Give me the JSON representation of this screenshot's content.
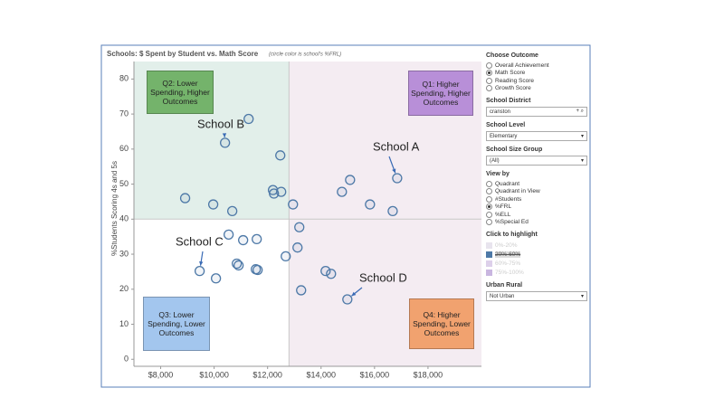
{
  "chart_data": {
    "type": "scatter",
    "title": "Schools: $ Spent by Student vs. Math Score",
    "subtitle": "(circle color is school's %FRL)",
    "y_label": "%Students Scoring 4s and 5s",
    "xlim": [
      7000,
      20000
    ],
    "ylim": [
      -2,
      85
    ],
    "xticks": [
      {
        "value": 8000,
        "label": "$8,000"
      },
      {
        "value": 10000,
        "label": "$10,000"
      },
      {
        "value": 12000,
        "label": "$12,000"
      },
      {
        "value": 14000,
        "label": "$14,000"
      },
      {
        "value": 16000,
        "label": "$16,000"
      },
      {
        "value": 18000,
        "label": "$18,000"
      }
    ],
    "yticks": [
      0,
      10,
      20,
      30,
      40,
      50,
      60,
      70,
      80
    ],
    "reference_lines": {
      "x": 12800,
      "y": 40
    },
    "quadrants": [
      {
        "label": "Q2: Lower Spending, Higher Outcomes",
        "color": "#74b36b",
        "background": "#e2efea"
      },
      {
        "label": "Q1: Higher Spending, Higher Outcomes",
        "color": "#b88fd8",
        "background": "#f4ecf2"
      },
      {
        "label": "Q3: Lower Spending, Lower Outcomes",
        "color": "#a3c6ee",
        "background": "#ffffff"
      },
      {
        "label": "Q4: Higher Spending, Lower Outcomes",
        "color": "#f1a26f",
        "background": "#f4ecf2"
      }
    ],
    "annotations": [
      "School B",
      "School A",
      "School C",
      "School D"
    ],
    "series": [
      {
        "name": "20%-60%",
        "color": "#4e79a7",
        "x": [
          11290,
          10407,
          12475,
          16847,
          15085,
          8915,
          14780,
          15830,
          16680,
          9966,
          10678,
          12200,
          12237,
          12508,
          12950,
          13186,
          10542,
          11085,
          11593,
          13119,
          12678,
          10847,
          10915,
          11559,
          11627,
          9458,
          10068,
          14170,
          14373,
          13254,
          14983
        ],
        "values": [
          68.6,
          61.8,
          58.2,
          51.7,
          51.2,
          46.0,
          47.8,
          44.2,
          42.3,
          44.2,
          42.3,
          48.3,
          47.3,
          47.8,
          44.2,
          37.7,
          35.6,
          34.0,
          34.3,
          31.9,
          29.4,
          27.3,
          26.8,
          25.7,
          25.5,
          25.2,
          23.1,
          25.2,
          24.4,
          19.7,
          17.1
        ]
      }
    ]
  },
  "sidebar": {
    "outcome": {
      "title": "Choose Outcome",
      "options": [
        "Overall Achievement",
        "Math Score",
        "Reading Score",
        "Growth Score"
      ],
      "selected": 1
    },
    "district": {
      "title": "School District",
      "value": "cranston"
    },
    "level": {
      "title": "School Level",
      "value": "Elementary"
    },
    "size": {
      "title": "School Size Group",
      "value": "(All)"
    },
    "view": {
      "title": "View by",
      "options": [
        "Quadrant",
        "Quadrant in View",
        "#Students",
        "%FRL",
        "%ELL",
        "%Special Ed"
      ],
      "selected": 3
    },
    "highlight": {
      "title": "Click to highlight",
      "items": [
        {
          "label": "0%-20%",
          "color": "#e8e4ee"
        },
        {
          "label": "20%-60%",
          "color": "#4e79a7"
        },
        {
          "label": "60%-75%",
          "color": "#ddd0ea"
        },
        {
          "label": "75%-100%",
          "color": "#c9b6e0"
        }
      ]
    },
    "urban": {
      "title": "Urban Rural",
      "value": "Not Urban"
    }
  }
}
